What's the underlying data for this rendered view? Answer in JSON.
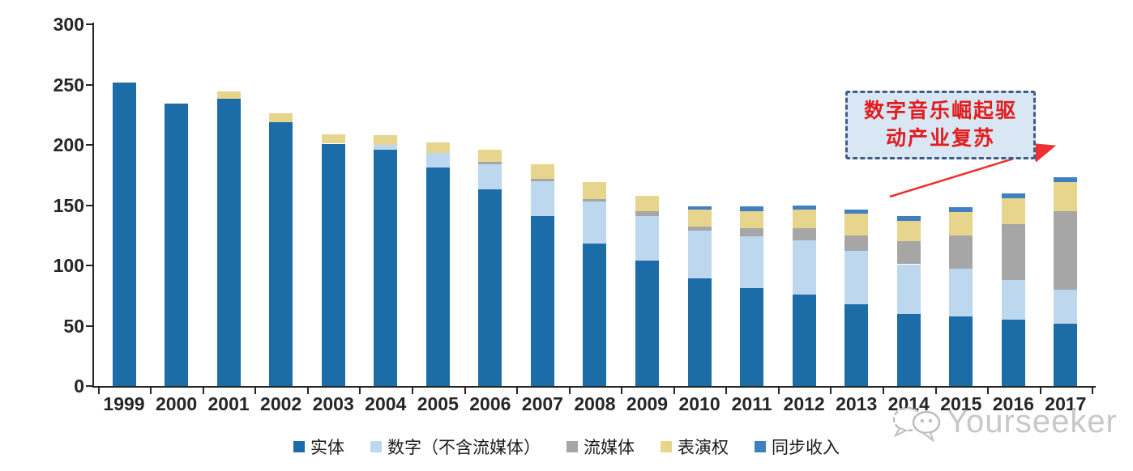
{
  "chart_data": {
    "type": "bar",
    "stacked": true,
    "title": "",
    "xlabel": "",
    "ylabel": "",
    "ylim": [
      0,
      300
    ],
    "yticks": [
      0,
      50,
      100,
      150,
      200,
      250,
      300
    ],
    "grid": false,
    "legend_position": "bottom",
    "categories": [
      "1999",
      "2000",
      "2001",
      "2002",
      "2003",
      "2004",
      "2005",
      "2006",
      "2007",
      "2008",
      "2009",
      "2010",
      "2011",
      "2012",
      "2013",
      "2014",
      "2015",
      "2016",
      "2017"
    ],
    "series": [
      {
        "name": "实体",
        "color": "#1C6CA8",
        "values": [
          252,
          234,
          238,
          219,
          201,
          196,
          181,
          163,
          141,
          118,
          104,
          89,
          81,
          76,
          68,
          60,
          58,
          55,
          52
        ]
      },
      {
        "name": "数字（不含流媒体）",
        "color": "#BDD7EE",
        "values": [
          0,
          0,
          0,
          0,
          0,
          4,
          12,
          21,
          29,
          35,
          37,
          40,
          43,
          45,
          44,
          41,
          39,
          33,
          28
        ]
      },
      {
        "name": "流媒体",
        "color": "#A6A6A6",
        "values": [
          0,
          0,
          0,
          0,
          0,
          0,
          0,
          2,
          2,
          2,
          4,
          3,
          7,
          10,
          13,
          19,
          28,
          46,
          65
        ]
      },
      {
        "name": "表演权",
        "color": "#E7D48D",
        "values": [
          0,
          0,
          6,
          7,
          8,
          8,
          9,
          10,
          12,
          14,
          13,
          14,
          14,
          15,
          18,
          17,
          19,
          22,
          24
        ]
      },
      {
        "name": "同步收入",
        "color": "#3E80C0",
        "values": [
          0,
          0,
          0,
          0,
          0,
          0,
          0,
          0,
          0,
          0,
          0,
          3,
          4,
          4,
          3,
          4,
          4,
          4,
          4
        ]
      }
    ]
  },
  "annotation": {
    "line1": "数字音乐崛起驱",
    "line2": "动产业复苏",
    "text_color": "#E11D1D",
    "box_fill": "#D9E6F4",
    "box_border": "#3F5D85"
  },
  "arrow": {
    "color": "#EE3030"
  },
  "watermark": {
    "text": "Yourseeker"
  },
  "axis_color": "#262626"
}
